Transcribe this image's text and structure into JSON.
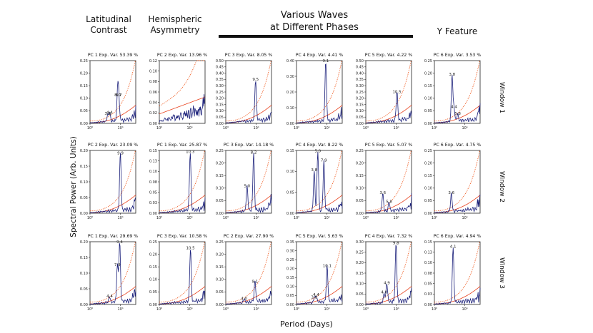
{
  "headers": {
    "latitudinal": "Latitudinal\nContrast",
    "hemispheric": "Hemispheric\nAsymmetry",
    "waves": "Various Waves\nat Different Phases",
    "yfeature": "Y Feature"
  },
  "ylabel": "Spectral Power (Arb. Units)",
  "xlabel": "Period (Days)",
  "windows": [
    "Window 1",
    "Window 2",
    "Window 3"
  ],
  "colors": {
    "spectrum": "#1a1f7a",
    "fit": "#e8401c",
    "confidence": "#f05a1e",
    "axis": "#222222"
  },
  "chart_data": [
    {
      "type": "line",
      "row": 0,
      "col": 0,
      "title": "PC 1 Exp. Var. 53.39 %",
      "yticks": [
        "0.00",
        "0.05",
        "0.10",
        "0.15",
        "0.20",
        "0.25"
      ],
      "ylim": [
        0,
        0.27
      ],
      "xscale": "log",
      "xticks": [
        "10⁰",
        "10¹"
      ],
      "peaks": [
        {
          "x": 3.8,
          "y": 0.03,
          "label": "3.8"
        },
        {
          "x": 4.4,
          "y": 0.035,
          "label": "4.4"
        },
        {
          "x": 8.0,
          "y": 0.11,
          "label": "8.0"
        },
        {
          "x": 8.7,
          "y": 0.11,
          "label": "8.7"
        }
      ]
    },
    {
      "type": "line",
      "row": 0,
      "col": 1,
      "title": "PC 2 Exp. Var. 13.96 %",
      "yticks": [
        "0.00",
        "0.02",
        "0.04",
        "0.06",
        "0.08",
        "0.10",
        "0.12"
      ],
      "ylim": [
        0,
        0.125
      ],
      "xscale": "log",
      "xticks": [
        "10⁰",
        "10¹"
      ],
      "peaks": []
    },
    {
      "type": "line",
      "row": 0,
      "col": 2,
      "title": "PC 3 Exp. Var. 8.05 %",
      "yticks": [
        "0.00",
        "0.05",
        "0.10",
        "0.15",
        "0.20",
        "0.25",
        "0.30",
        "0.35",
        "0.40",
        "0.45",
        "0.50"
      ],
      "ylim": [
        0,
        0.5
      ],
      "xscale": "log",
      "xticks": [
        "10⁰",
        "10¹"
      ],
      "peaks": [
        {
          "x": 9.5,
          "y": 0.33,
          "label": "9.5"
        }
      ]
    },
    {
      "type": "line",
      "row": 0,
      "col": 3,
      "title": "PC 4 Exp. Var. 4.41 %",
      "yticks": [
        "0.00",
        "0.10",
        "0.20",
        "0.30",
        "0.40"
      ],
      "ylim": [
        0,
        0.45
      ],
      "xscale": "log",
      "xticks": [
        "10⁰",
        "10¹"
      ],
      "peaks": [
        {
          "x": 9.1,
          "y": 0.43,
          "label": "9.1"
        }
      ]
    },
    {
      "type": "line",
      "row": 0,
      "col": 4,
      "title": "PC 5 Exp. Var. 4.22 %",
      "yticks": [
        "0.00",
        "0.05",
        "0.10",
        "0.15",
        "0.20",
        "0.25",
        "0.30",
        "0.35",
        "0.40",
        "0.45",
        "0.50"
      ],
      "ylim": [
        0,
        0.5
      ],
      "xscale": "log",
      "xticks": [
        "10⁰",
        "10¹"
      ],
      "peaks": [
        {
          "x": 10.5,
          "y": 0.23,
          "label": "10.5"
        }
      ]
    },
    {
      "type": "line",
      "row": 0,
      "col": 5,
      "title": "PC 6 Exp. Var. 3.53 %",
      "yticks": [
        "0.00",
        "0.05",
        "0.10",
        "0.15",
        "0.20",
        "0.25"
      ],
      "ylim": [
        0,
        0.27
      ],
      "xscale": "log",
      "xticks": [
        "10⁰",
        "10¹"
      ],
      "peaks": [
        {
          "x": 3.8,
          "y": 0.2,
          "label": "3.8"
        },
        {
          "x": 5.8,
          "y": 0.03,
          "label": "5.8"
        },
        {
          "x": 4.4,
          "y": 0.06,
          "label": "4.4"
        }
      ]
    },
    {
      "type": "line",
      "row": 1,
      "col": 0,
      "title": "PC 2 Exp. Var. 23.09 %",
      "yticks": [
        "0.00",
        "0.05",
        "0.10",
        "0.15",
        "0.20"
      ],
      "ylim": [
        0,
        0.23
      ],
      "xscale": "log",
      "xticks": [
        "10⁰",
        "10¹"
      ],
      "peaks": [
        {
          "x": 9.9,
          "y": 0.21,
          "label": "9.9"
        }
      ]
    },
    {
      "type": "line",
      "row": 1,
      "col": 1,
      "title": "PC 1 Exp. Var. 25.87 %",
      "yticks": [
        "0.00",
        "0.03",
        "0.05",
        "0.08",
        "0.10",
        "0.13",
        "0.15"
      ],
      "ylim": [
        0,
        0.16
      ],
      "xscale": "log",
      "xticks": [
        "10⁰",
        "10¹"
      ],
      "peaks": [
        {
          "x": 10.3,
          "y": 0.15,
          "label": "10.3"
        }
      ]
    },
    {
      "type": "line",
      "row": 1,
      "col": 2,
      "title": "PC 3 Exp. Var. 14.18 %",
      "yticks": [
        "0.00",
        "0.05",
        "0.10",
        "0.15",
        "0.20",
        "0.25"
      ],
      "ylim": [
        0,
        0.28
      ],
      "xscale": "log",
      "xticks": [
        "10⁰",
        "10¹"
      ],
      "peaks": [
        {
          "x": 8.2,
          "y": 0.26,
          "label": "8.2"
        },
        {
          "x": 5.0,
          "y": 0.11,
          "label": "5.0"
        }
      ]
    },
    {
      "type": "line",
      "row": 1,
      "col": 3,
      "title": "PC 4 Exp. Var. 8.22 %",
      "yticks": [
        "0.00",
        "0.05",
        "0.10",
        "0.15"
      ],
      "ylim": [
        0,
        0.2
      ],
      "xscale": "log",
      "xticks": [
        "10⁰",
        "10¹"
      ],
      "peaks": [
        {
          "x": 5.0,
          "y": 0.19,
          "label": "5.0"
        },
        {
          "x": 3.8,
          "y": 0.13,
          "label": "3.8"
        },
        {
          "x": 7.9,
          "y": 0.16,
          "label": "7.9"
        }
      ]
    },
    {
      "type": "line",
      "row": 1,
      "col": 4,
      "title": "PC 5 Exp. Var. 5.07 %",
      "yticks": [
        "0.00",
        "0.05",
        "0.10",
        "0.15",
        "0.20",
        "0.25"
      ],
      "ylim": [
        0,
        0.28
      ],
      "xscale": "log",
      "xticks": [
        "10⁰",
        "10¹"
      ],
      "peaks": [
        {
          "x": 3.6,
          "y": 0.08,
          "label": "3.6"
        },
        {
          "x": 5.8,
          "y": 0.04,
          "label": "5.8"
        }
      ]
    },
    {
      "type": "line",
      "row": 1,
      "col": 5,
      "title": "PC 6 Exp. Var. 4.75 %",
      "yticks": [
        "0.00",
        "0.05",
        "0.10",
        "0.15",
        "0.20",
        "0.25"
      ],
      "ylim": [
        0,
        0.28
      ],
      "xscale": "log",
      "xticks": [
        "10⁰",
        "10¹"
      ],
      "peaks": [
        {
          "x": 3.6,
          "y": 0.08,
          "label": "3.6"
        }
      ]
    },
    {
      "type": "line",
      "row": 2,
      "col": 0,
      "title": "PC 1 Exp. Var. 29.69 %",
      "yticks": [
        "0.00",
        "0.05",
        "0.10",
        "0.15",
        "0.20"
      ],
      "ylim": [
        0,
        0.22
      ],
      "xscale": "log",
      "xticks": [
        "10⁰",
        "10¹"
      ],
      "peaks": [
        {
          "x": 9.4,
          "y": 0.21,
          "label": "9.4"
        },
        {
          "x": 7.9,
          "y": 0.13,
          "label": "7.9"
        },
        {
          "x": 4.4,
          "y": 0.02,
          "label": "4.4"
        }
      ]
    },
    {
      "type": "line",
      "row": 2,
      "col": 1,
      "title": "PC 3 Exp. Var. 10.58 %",
      "yticks": [
        "0.00",
        "0.05",
        "0.10",
        "0.15",
        "0.20",
        "0.25"
      ],
      "ylim": [
        0,
        0.28
      ],
      "xscale": "log",
      "xticks": [
        "10⁰",
        "10¹"
      ],
      "peaks": [
        {
          "x": 10.5,
          "y": 0.24,
          "label": "10.5"
        }
      ]
    },
    {
      "type": "line",
      "row": 2,
      "col": 2,
      "title": "PC 2 Exp. Var. 27.90 %",
      "yticks": [
        "0.00",
        "0.05",
        "0.10",
        "0.15",
        "0.20",
        "0.25"
      ],
      "ylim": [
        0,
        0.28
      ],
      "xscale": "log",
      "xticks": [
        "10⁰",
        "10¹"
      ],
      "peaks": [
        {
          "x": 9.1,
          "y": 0.09,
          "label": "9.1"
        },
        {
          "x": 4.0,
          "y": 0.015,
          "label": "4.0"
        }
      ]
    },
    {
      "type": "line",
      "row": 2,
      "col": 3,
      "title": "PC 5 Exp. Var. 5.63 %",
      "yticks": [
        "0.00",
        "0.05",
        "0.10",
        "0.15",
        "0.20",
        "0.25",
        "0.30",
        "0.35"
      ],
      "ylim": [
        0,
        0.35
      ],
      "xscale": "log",
      "xticks": [
        "10⁰",
        "10¹"
      ],
      "peaks": [
        {
          "x": 10.1,
          "y": 0.2,
          "label": "10.1"
        },
        {
          "x": 4.4,
          "y": 0.04,
          "label": "4.4"
        },
        {
          "x": 3.8,
          "y": 0.025,
          "label": "3.8"
        }
      ]
    },
    {
      "type": "line",
      "row": 2,
      "col": 4,
      "title": "PC 4 Exp. Var. 7.32 %",
      "yticks": [
        "0.00",
        "0.05",
        "0.10",
        "0.15",
        "0.20",
        "0.25",
        "0.30"
      ],
      "ylim": [
        0,
        0.33
      ],
      "xscale": "log",
      "xticks": [
        "10⁰",
        "10¹"
      ],
      "peaks": [
        {
          "x": 9.8,
          "y": 0.31,
          "label": "9.8"
        },
        {
          "x": 4.9,
          "y": 0.1,
          "label": "4.9"
        },
        {
          "x": 4.0,
          "y": 0.05,
          "label": "4.0"
        }
      ]
    },
    {
      "type": "line",
      "row": 2,
      "col": 5,
      "title": "PC 6 Exp. Var. 4.94 %",
      "yticks": [
        "0.00",
        "0.03",
        "0.05",
        "0.08",
        "0.10",
        "0.13",
        "0.15"
      ],
      "ylim": [
        0,
        0.17
      ],
      "xscale": "log",
      "xticks": [
        "10⁰",
        "10¹"
      ],
      "peaks": [
        {
          "x": 4.1,
          "y": 0.15,
          "label": "4.1"
        }
      ]
    }
  ]
}
